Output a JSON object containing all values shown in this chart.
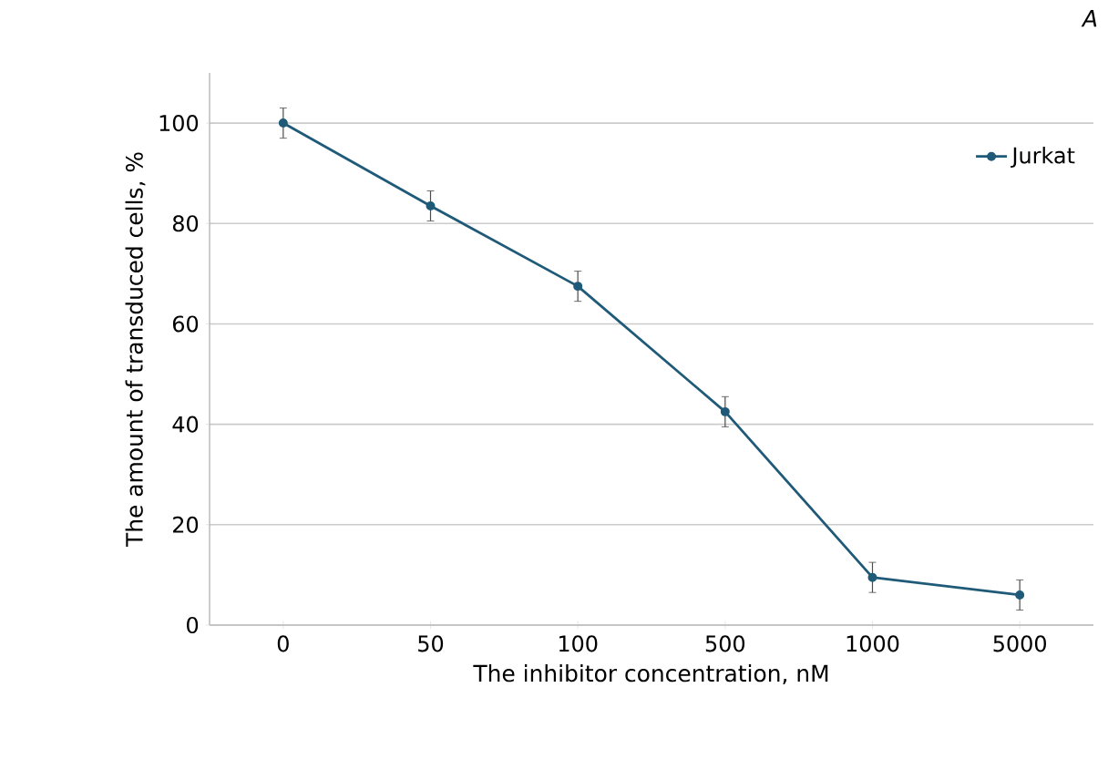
{
  "chart_data": {
    "type": "line",
    "xlabel": "The inhibitor concentration, nM",
    "ylabel": "The amount of transduced cells, %",
    "annotations": [
      "A"
    ],
    "categories": [
      "0",
      "50",
      "100",
      "500",
      "1000",
      "5000"
    ],
    "series": [
      {
        "name": "Jurkat",
        "color": "#1f5a78",
        "values": [
          100,
          83.5,
          67.5,
          42.5,
          9.5,
          6
        ],
        "errors": [
          3,
          3,
          3,
          3,
          3,
          3
        ]
      }
    ],
    "ylim": [
      0,
      110
    ],
    "yticks": [
      0,
      20,
      40,
      60,
      80,
      100
    ],
    "grid": "y",
    "legend": "top right",
    "marker": "circle",
    "line_style": "solid"
  }
}
